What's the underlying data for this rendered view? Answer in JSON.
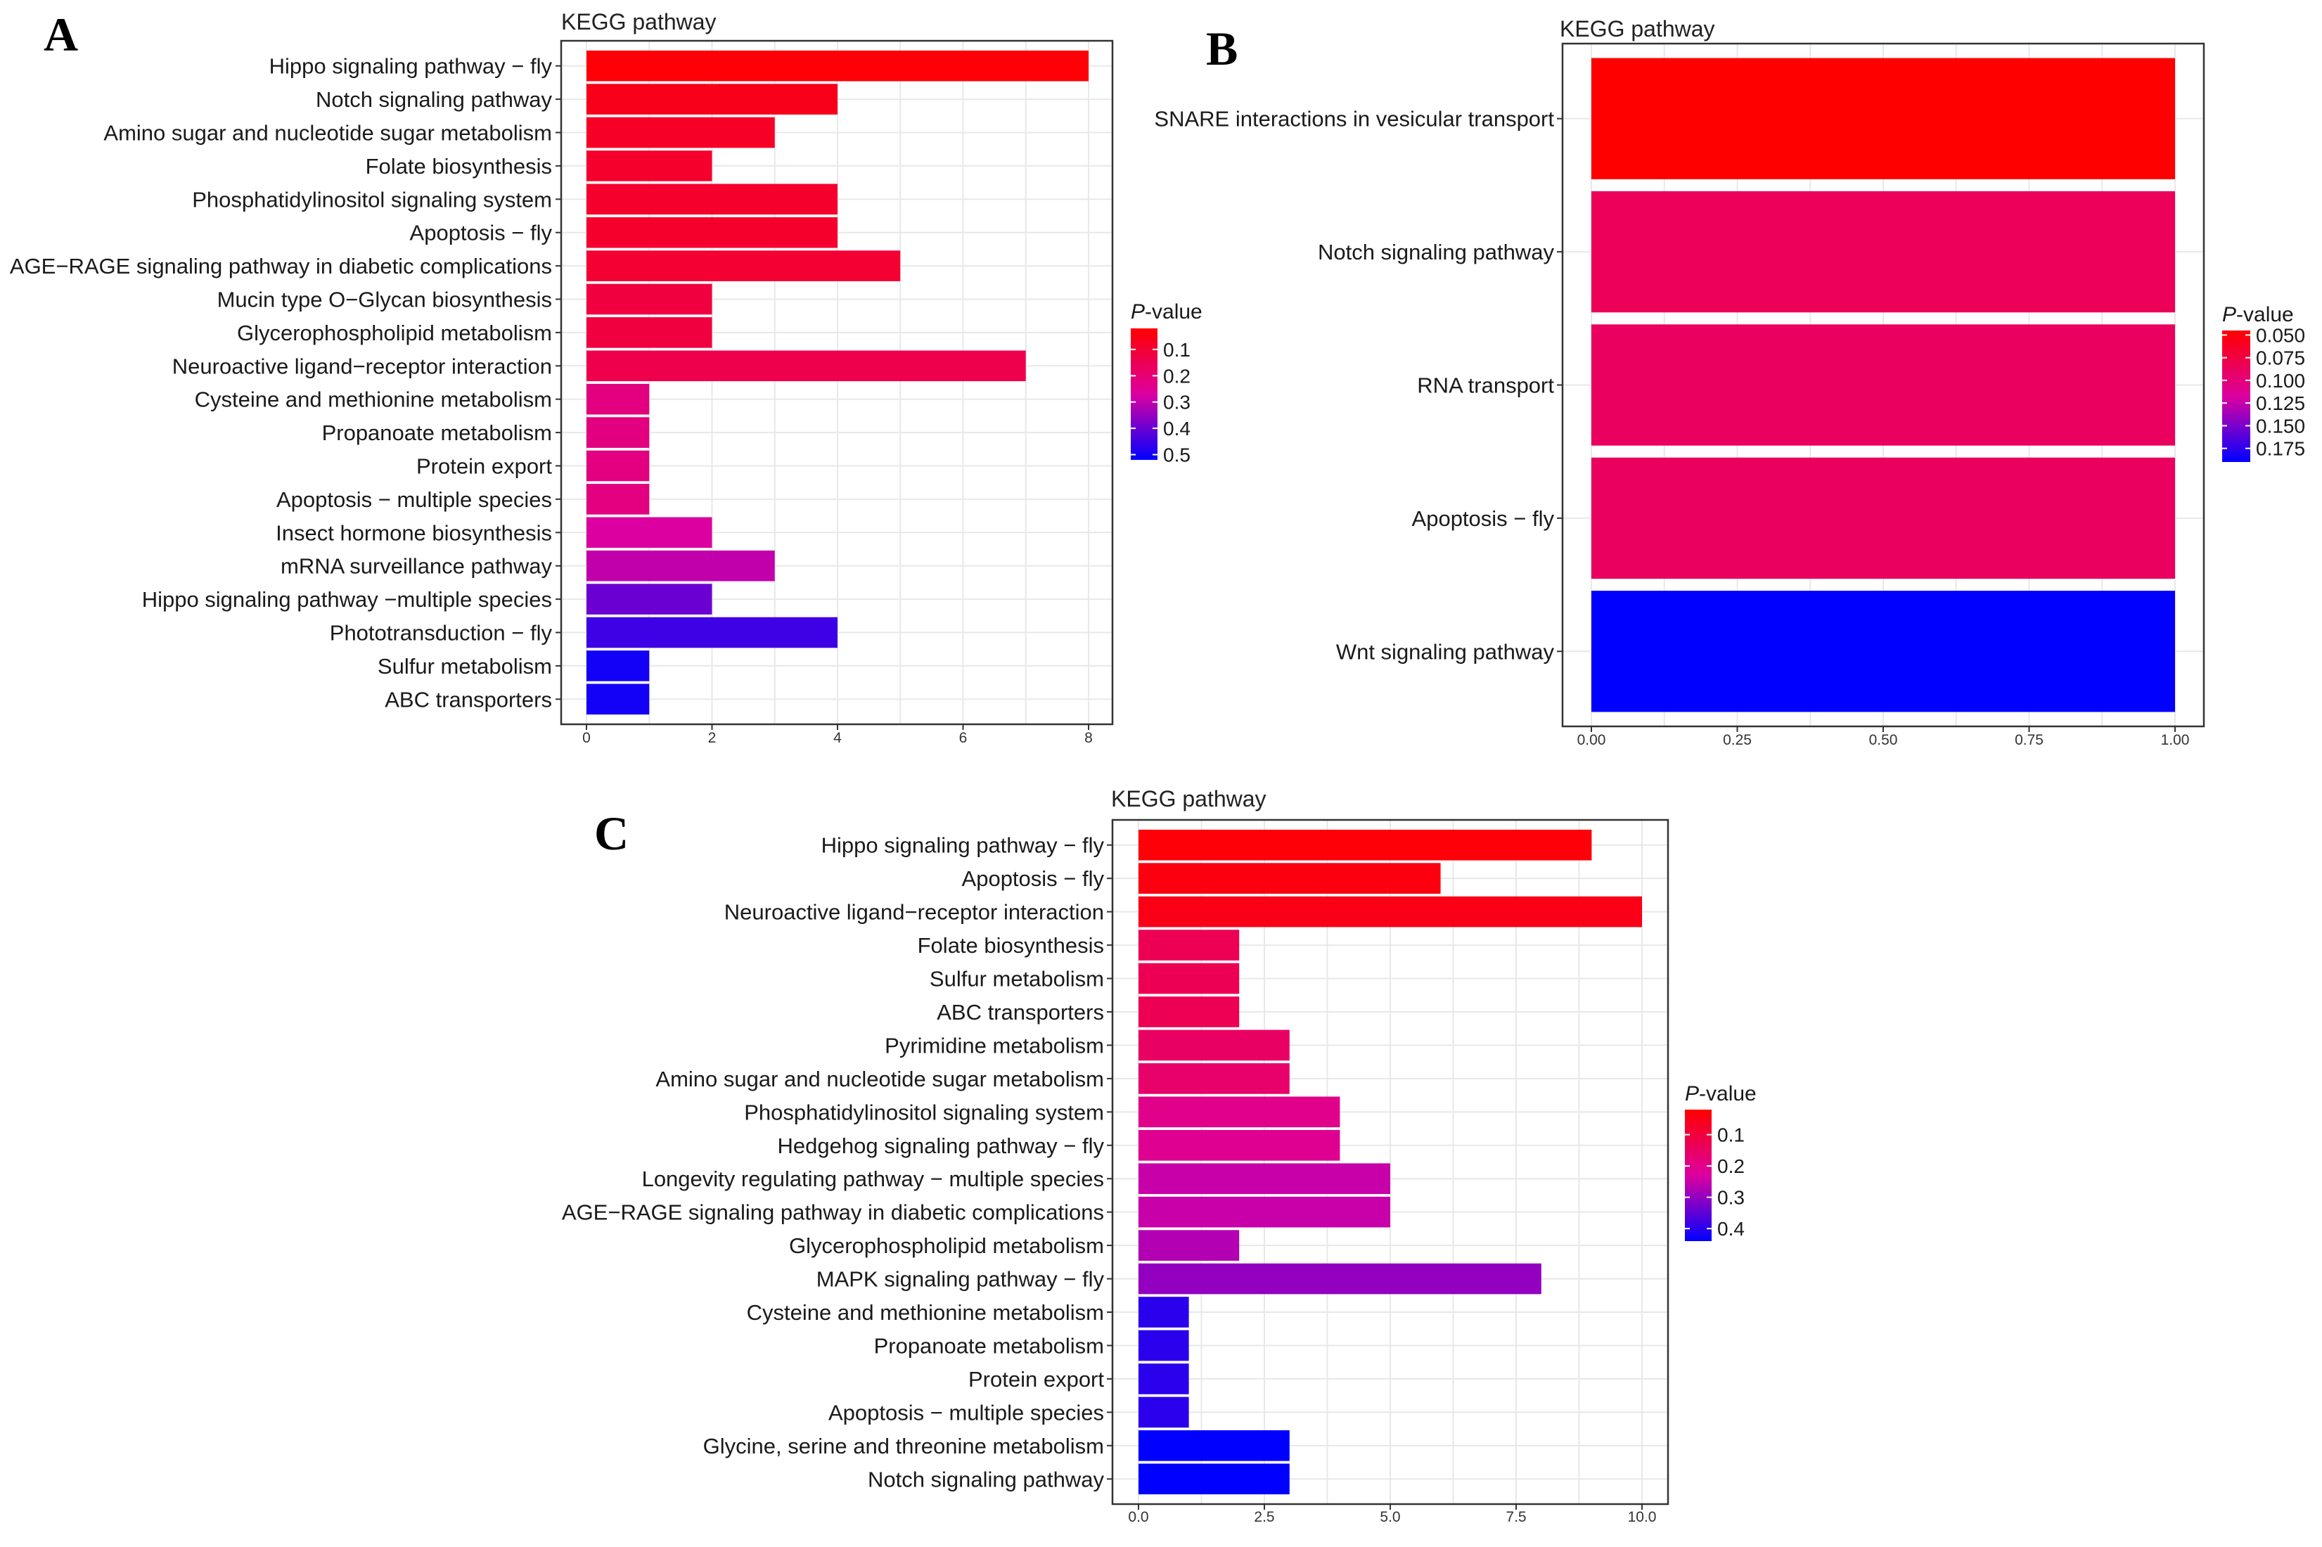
{
  "chart_data": [
    {
      "panel": "A",
      "type": "bar",
      "orientation": "horizontal",
      "title": "KEGG pathway",
      "categories": [
        "Hippo signaling pathway − fly",
        "Notch signaling pathway",
        "Amino sugar and nucleotide sugar metabolism",
        "Folate biosynthesis",
        "Phosphatidylinositol signaling system",
        "Apoptosis − fly",
        "AGE−RAGE signaling pathway in diabetic complications",
        "Mucin type O−Glycan biosynthesis",
        "Glycerophospholipid metabolism",
        "Neuroactive ligand−receptor interaction",
        "Cysteine and methionine metabolism",
        "Propanoate metabolism",
        "Protein export",
        "Apoptosis − multiple species",
        "Insect hormone biosynthesis",
        "mRNA surveillance pathway",
        "Hippo signaling pathway −multiple species",
        "Phototransduction − fly",
        "Sulfur metabolism",
        "ABC transporters"
      ],
      "values": [
        8,
        4,
        3,
        2,
        4,
        4,
        5,
        2,
        2,
        7,
        1,
        1,
        1,
        1,
        2,
        3,
        2,
        4,
        1,
        1
      ],
      "pvalues": [
        0.03,
        0.06,
        0.08,
        0.09,
        0.09,
        0.09,
        0.1,
        0.12,
        0.12,
        0.14,
        0.22,
        0.22,
        0.22,
        0.22,
        0.27,
        0.3,
        0.4,
        0.45,
        0.5,
        0.5
      ],
      "xlim": [
        0,
        8.5
      ],
      "xticks": [
        0,
        2,
        4,
        6,
        8
      ],
      "xtick_labels": [
        "0",
        "2",
        "4",
        "6",
        "8"
      ],
      "legend": {
        "title_italic": "P",
        "title_rest": "-value",
        "labels": [
          "0.1",
          "0.2",
          "0.3",
          "0.4",
          "0.5"
        ],
        "ticks": [
          0.1,
          0.2,
          0.3,
          0.4,
          0.5
        ],
        "range": [
          0.02,
          0.52
        ]
      }
    },
    {
      "panel": "B",
      "type": "bar",
      "orientation": "horizontal",
      "title": "KEGG pathway",
      "categories": [
        "SNARE interactions in vesicular transport",
        "Notch signaling pathway",
        "RNA transport",
        "Apoptosis − fly",
        "Wnt signaling pathway"
      ],
      "values": [
        1,
        1,
        1,
        1,
        1
      ],
      "pvalues": [
        0.045,
        0.085,
        0.088,
        0.088,
        0.19
      ],
      "xlim": [
        0,
        1.05
      ],
      "xticks": [
        0,
        0.25,
        0.5,
        0.75,
        1.0
      ],
      "xtick_labels": [
        "0.00",
        "0.25",
        "0.50",
        "0.75",
        "1.00"
      ],
      "legend": {
        "title_italic": "P",
        "title_rest": "-value",
        "labels": [
          "0.050",
          "0.075",
          "0.100",
          "0.125",
          "0.150",
          "0.175"
        ],
        "ticks": [
          0.05,
          0.075,
          0.1,
          0.125,
          0.15,
          0.175
        ],
        "range": [
          0.045,
          0.19
        ]
      }
    },
    {
      "panel": "C",
      "type": "bar",
      "orientation": "horizontal",
      "title": "KEGG  pathway",
      "categories": [
        "Hippo signaling pathway − fly",
        "Apoptosis − fly",
        "Neuroactive ligand−receptor interaction",
        "Folate biosynthesis",
        "Sulfur metabolism",
        "ABC transporters",
        "Pyrimidine metabolism",
        "Amino sugar and nucleotide sugar metabolism",
        "Phosphatidylinositol signaling system",
        "Hedgehog signaling pathway − fly",
        "Longevity regulating pathway − multiple species",
        "AGE−RAGE signaling pathway in diabetic complications",
        "Glycerophospholipid metabolism",
        "MAPK signaling pathway − fly",
        "Cysteine and methionine metabolism",
        "Propanoate metabolism",
        "Protein export",
        "Apoptosis − multiple species",
        "Glycine, serine and threonine metabolism",
        "Notch signaling pathway"
      ],
      "values": [
        9,
        6,
        10,
        2,
        2,
        2,
        3,
        3,
        4,
        4,
        5,
        5,
        2,
        8,
        1,
        1,
        1,
        1,
        3,
        3
      ],
      "pvalues": [
        0.03,
        0.04,
        0.05,
        0.13,
        0.13,
        0.13,
        0.15,
        0.16,
        0.2,
        0.21,
        0.25,
        0.25,
        0.27,
        0.3,
        0.4,
        0.4,
        0.4,
        0.4,
        0.44,
        0.44
      ],
      "xlim": [
        0,
        10.5
      ],
      "xticks": [
        0,
        2.5,
        5,
        7.5,
        10
      ],
      "xtick_labels": [
        "0.0",
        "2.5",
        "5.0",
        "7.5",
        "10.0"
      ],
      "legend": {
        "title_italic": "P",
        "title_rest": "-value",
        "labels": [
          "0.1",
          "0.2",
          "0.3",
          "0.4"
        ],
        "ticks": [
          0.1,
          0.2,
          0.3,
          0.4
        ],
        "range": [
          0.02,
          0.44
        ]
      }
    }
  ],
  "colors": {
    "low_p": "#ff0000",
    "high_p": "#0000ff",
    "grid": "#e8e8e8",
    "frame": "#333333"
  }
}
